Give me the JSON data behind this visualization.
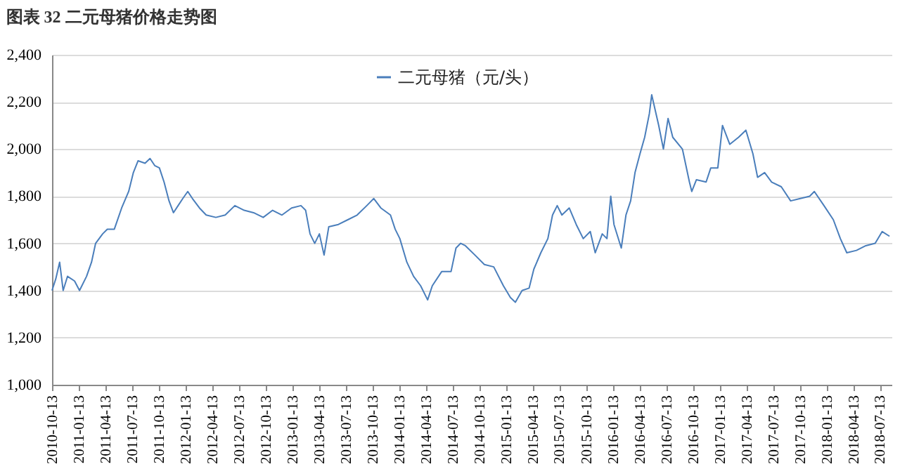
{
  "chart_data": {
    "type": "line",
    "title": "图表 32 二元母猪价格走势图",
    "x": [
      "2010-10-13",
      "2010-10-26",
      "2010-11-08",
      "2010-11-20",
      "2010-12-05",
      "2010-12-29",
      "2011-01-15",
      "2011-02-08",
      "2011-02-25",
      "2011-03-11",
      "2011-04-04",
      "2011-04-20",
      "2011-05-14",
      "2011-06-08",
      "2011-07-02",
      "2011-07-18",
      "2011-08-03",
      "2011-08-27",
      "2011-09-13",
      "2011-09-29",
      "2011-10-15",
      "2011-10-31",
      "2011-11-17",
      "2011-12-02",
      "2011-12-18",
      "2012-01-03",
      "2012-01-20",
      "2012-02-05",
      "2012-02-29",
      "2012-03-23",
      "2012-04-25",
      "2012-05-27",
      "2012-06-29",
      "2012-07-31",
      "2012-09-01",
      "2012-10-04",
      "2012-11-05",
      "2012-12-07",
      "2013-01-09",
      "2013-02-10",
      "2013-02-26",
      "2013-03-13",
      "2013-03-29",
      "2013-04-14",
      "2013-04-30",
      "2013-05-16",
      "2013-06-18",
      "2013-07-20",
      "2013-08-21",
      "2013-09-23",
      "2013-10-17",
      "2013-11-10",
      "2013-12-13",
      "2013-12-29",
      "2014-01-14",
      "2014-02-07",
      "2014-03-02",
      "2014-03-26",
      "2014-04-19",
      "2014-05-05",
      "2014-06-06",
      "2014-07-08",
      "2014-07-25",
      "2014-08-10",
      "2014-08-26",
      "2014-09-28",
      "2014-10-30",
      "2014-12-01",
      "2015-01-03",
      "2015-01-27",
      "2015-02-13",
      "2015-03-08",
      "2015-04-01",
      "2015-04-17",
      "2015-05-11",
      "2015-06-04",
      "2015-06-20",
      "2015-07-06",
      "2015-07-22",
      "2015-08-16",
      "2015-09-09",
      "2015-10-03",
      "2015-10-27",
      "2015-11-13",
      "2015-12-07",
      "2015-12-23",
      "2016-01-05",
      "2016-01-16",
      "2016-02-10",
      "2016-02-26",
      "2016-03-13",
      "2016-03-28",
      "2016-04-14",
      "2016-04-30",
      "2016-05-16",
      "2016-05-24",
      "2016-06-17",
      "2016-07-03",
      "2016-07-19",
      "2016-08-04",
      "2016-09-06",
      "2016-09-30",
      "2016-10-08",
      "2016-10-24",
      "2016-11-26",
      "2016-12-12",
      "2017-01-05",
      "2017-01-21",
      "2017-02-15",
      "2017-03-17",
      "2017-04-11",
      "2017-05-05",
      "2017-05-21",
      "2017-06-14",
      "2017-07-08",
      "2017-08-10",
      "2017-09-11",
      "2017-10-14",
      "2017-11-15",
      "2017-12-01",
      "2018-01-03",
      "2018-02-04",
      "2018-02-28",
      "2018-03-22",
      "2018-04-24",
      "2018-05-26",
      "2018-06-27",
      "2018-07-21",
      "2018-08-15"
    ],
    "series": [
      {
        "name": "二元母猪（元/头）",
        "color": "#4a7ebb",
        "values": [
          1400,
          1450,
          1520,
          1400,
          1460,
          1440,
          1400,
          1460,
          1520,
          1600,
          1640,
          1660,
          1660,
          1750,
          1820,
          1900,
          1950,
          1940,
          1960,
          1930,
          1920,
          1860,
          1780,
          1730,
          1760,
          1790,
          1820,
          1790,
          1750,
          1720,
          1710,
          1720,
          1760,
          1740,
          1730,
          1710,
          1740,
          1720,
          1750,
          1760,
          1740,
          1640,
          1600,
          1640,
          1550,
          1670,
          1680,
          1700,
          1720,
          1760,
          1790,
          1750,
          1720,
          1660,
          1620,
          1520,
          1460,
          1420,
          1360,
          1420,
          1480,
          1480,
          1580,
          1600,
          1590,
          1550,
          1510,
          1500,
          1420,
          1370,
          1350,
          1400,
          1410,
          1490,
          1560,
          1620,
          1720,
          1760,
          1720,
          1750,
          1680,
          1620,
          1650,
          1560,
          1640,
          1620,
          1800,
          1680,
          1580,
          1720,
          1780,
          1900,
          1980,
          2050,
          2150,
          2230,
          2100,
          2000,
          2130,
          2050,
          2000,
          1860,
          1820,
          1870,
          1860,
          1920,
          1920,
          2100,
          2020,
          2050,
          2080,
          1980,
          1880,
          1900,
          1860,
          1840,
          1780,
          1790,
          1800,
          1820,
          1760,
          1700,
          1620,
          1560,
          1570,
          1590,
          1600,
          1650,
          1630
        ]
      }
    ],
    "xlim": [
      "2010-10-13",
      "2018-08-22"
    ],
    "xticks": [
      "2010-10-13",
      "2011-01-13",
      "2011-04-13",
      "2011-07-13",
      "2011-10-13",
      "2012-01-13",
      "2012-04-13",
      "2012-07-13",
      "2012-10-13",
      "2013-01-13",
      "2013-04-13",
      "2013-07-13",
      "2013-10-13",
      "2014-01-13",
      "2014-04-13",
      "2014-07-13",
      "2014-10-13",
      "2015-01-13",
      "2015-04-13",
      "2015-07-13",
      "2015-10-13",
      "2016-01-13",
      "2016-04-13",
      "2016-07-13",
      "2016-10-13",
      "2017-01-13",
      "2017-04-13",
      "2017-07-13",
      "2017-10-13",
      "2018-01-13",
      "2018-04-13",
      "2018-07-13"
    ],
    "ylim": [
      1000,
      2400
    ],
    "yticks": [
      {
        "value": 1000,
        "label": "1,000"
      },
      {
        "value": 1200,
        "label": "1,200"
      },
      {
        "value": 1400,
        "label": "1,400"
      },
      {
        "value": 1600,
        "label": "1,600"
      },
      {
        "value": 1800,
        "label": "1,800"
      },
      {
        "value": 2000,
        "label": "2,000"
      },
      {
        "value": 2200,
        "label": "2,200"
      },
      {
        "value": 2400,
        "label": "2,400"
      }
    ],
    "grid": "y",
    "legend": "top",
    "line_style": "solid",
    "marker": "none"
  }
}
